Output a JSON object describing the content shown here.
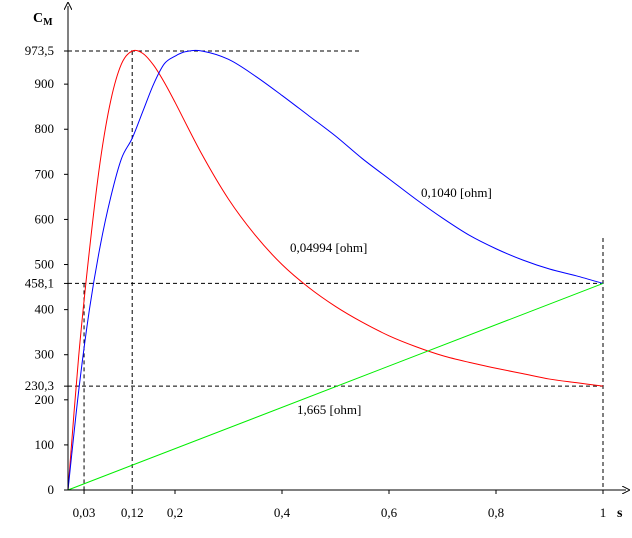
{
  "chart_data": {
    "type": "line",
    "x_axis": {
      "label": "s",
      "range": [
        0,
        1
      ],
      "ticks": [
        {
          "value": 0.03,
          "label": "0,03"
        },
        {
          "value": 0.12,
          "label": "0,12"
        },
        {
          "value": 0.2,
          "label": "0,2"
        },
        {
          "value": 0.4,
          "label": "0,4"
        },
        {
          "value": 0.6,
          "label": "0,6"
        },
        {
          "value": 0.8,
          "label": "0,8"
        },
        {
          "value": 1.0,
          "label": "1"
        }
      ]
    },
    "y_axis": {
      "label_main": "C",
      "label_sub": "M",
      "range": [
        0,
        1000
      ],
      "ticks": [
        {
          "value": 0,
          "label": "0"
        },
        {
          "value": 100,
          "label": "100"
        },
        {
          "value": 200,
          "label": "200"
        },
        {
          "value": 230.3,
          "label": "230,3"
        },
        {
          "value": 300,
          "label": "300"
        },
        {
          "value": 400,
          "label": "400"
        },
        {
          "value": 458.1,
          "label": "458,1"
        },
        {
          "value": 500,
          "label": "500"
        },
        {
          "value": 600,
          "label": "600"
        },
        {
          "value": 700,
          "label": "700"
        },
        {
          "value": 800,
          "label": "800"
        },
        {
          "value": 900,
          "label": "900"
        },
        {
          "value": 973.5,
          "label": "973,5"
        }
      ]
    },
    "series": [
      {
        "name": "0,04994 [ohm]",
        "color": "#ff0000",
        "points": [
          [
            0,
            0
          ],
          [
            0.02,
            297
          ],
          [
            0.04,
            531
          ],
          [
            0.06,
            727
          ],
          [
            0.08,
            864
          ],
          [
            0.1,
            945
          ],
          [
            0.12,
            973.5
          ],
          [
            0.14,
            968
          ],
          [
            0.16,
            942
          ],
          [
            0.18,
            904
          ],
          [
            0.2,
            860
          ],
          [
            0.25,
            745
          ],
          [
            0.3,
            645
          ],
          [
            0.35,
            565
          ],
          [
            0.4,
            500
          ],
          [
            0.45,
            449
          ],
          [
            0.5,
            407
          ],
          [
            0.55,
            372
          ],
          [
            0.6,
            342
          ],
          [
            0.65,
            318
          ],
          [
            0.7,
            298
          ],
          [
            0.75,
            283
          ],
          [
            0.8,
            270
          ],
          [
            0.85,
            258
          ],
          [
            0.9,
            246
          ],
          [
            0.95,
            238
          ],
          [
            1.0,
            230.3
          ]
        ]
      },
      {
        "name": "0,1040 [ohm]",
        "color": "#0000ff",
        "points": [
          [
            0,
            0
          ],
          [
            0.02,
            220
          ],
          [
            0.04,
            400
          ],
          [
            0.06,
            540
          ],
          [
            0.08,
            650
          ],
          [
            0.1,
            735
          ],
          [
            0.12,
            780
          ],
          [
            0.14,
            840
          ],
          [
            0.16,
            900
          ],
          [
            0.18,
            945
          ],
          [
            0.2,
            962
          ],
          [
            0.22,
            972
          ],
          [
            0.25,
            973.5
          ],
          [
            0.3,
            955
          ],
          [
            0.35,
            918
          ],
          [
            0.4,
            875
          ],
          [
            0.45,
            830
          ],
          [
            0.5,
            785
          ],
          [
            0.55,
            735
          ],
          [
            0.6,
            690
          ],
          [
            0.65,
            645
          ],
          [
            0.7,
            603
          ],
          [
            0.75,
            565
          ],
          [
            0.8,
            535
          ],
          [
            0.85,
            510
          ],
          [
            0.9,
            490
          ],
          [
            0.95,
            475
          ],
          [
            1.0,
            458.1
          ]
        ]
      },
      {
        "name": "1,665 [ohm]",
        "color": "#00ee00",
        "points": [
          [
            0,
            0
          ],
          [
            1.0,
            458.1
          ]
        ]
      }
    ],
    "reference_lines": {
      "horizontal": [
        973.5,
        458.1,
        230.3
      ],
      "vertical": [
        0.03,
        0.12,
        1.0
      ]
    },
    "grid": false,
    "legend": "inline labels"
  }
}
